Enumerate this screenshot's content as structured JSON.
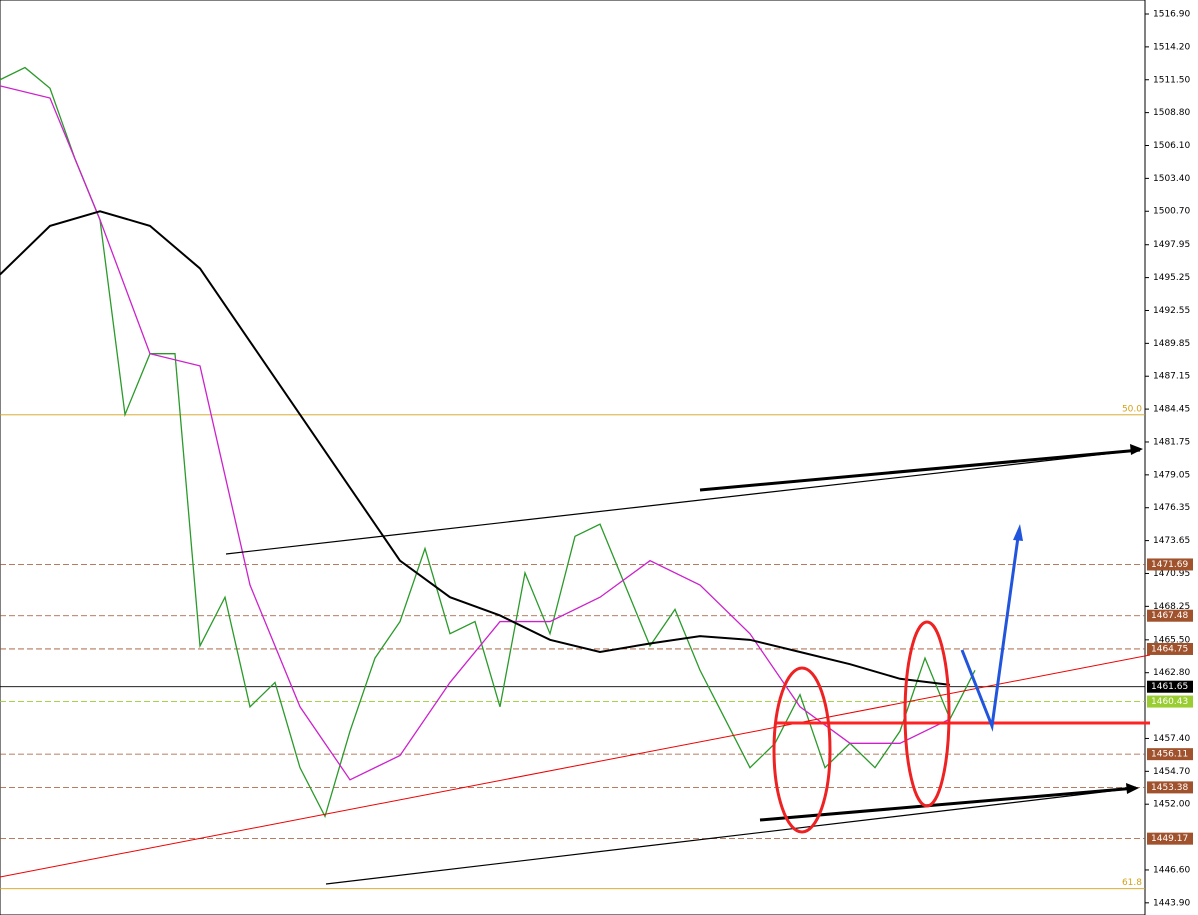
{
  "chart_data": {
    "type": "line",
    "ylim": [
      1442.9,
      1518.05
    ],
    "yticks": [
      {
        "value": 1516.9,
        "label": "1516.90"
      },
      {
        "value": 1514.2,
        "label": "1514.20"
      },
      {
        "value": 1511.5,
        "label": "1511.50"
      },
      {
        "value": 1508.8,
        "label": "1508.80"
      },
      {
        "value": 1506.1,
        "label": "1506.10"
      },
      {
        "value": 1503.4,
        "label": "1503.40"
      },
      {
        "value": 1500.7,
        "label": "1500.70"
      },
      1497.95,
      1495.25,
      1492.55,
      1489.85,
      1487.15,
      1484.45,
      1481.75,
      1479.05,
      1476.35,
      1473.65,
      1470.95,
      1468.25,
      {
        "value": 1465.5,
        "label": "1465.50"
      },
      {
        "value": 1462.8,
        "label": "1462.80"
      },
      {
        "value": 1457.4,
        "label": "1457.40"
      },
      {
        "value": 1454.7,
        "label": "1454.70"
      },
      {
        "value": 1452,
        "label": "1452.00"
      },
      {
        "value": 1446.6,
        "label": "1446.60"
      },
      {
        "value": 1443.9,
        "label": "1443.90"
      }
    ],
    "series": [
      {
        "color": "#2a9a2a",
        "values": [
          1511.5,
          1512.5,
          1510.8,
          1505,
          1500,
          1484,
          1489,
          1489,
          1465,
          1469,
          1460,
          1462,
          1455,
          1451,
          1458,
          1464,
          1467,
          1473,
          1466,
          1467,
          1460,
          1471,
          1466,
          1474,
          1475,
          1470,
          1465,
          1468,
          1463,
          1459,
          1455,
          1457,
          1461,
          1455,
          1457,
          1455,
          1458,
          1464,
          1459,
          1463
        ]
      },
      {
        "color": "#cc22cc",
        "values": [
          1511,
          1510,
          1500,
          1489,
          1488,
          1470,
          1460,
          1454,
          1456,
          1462,
          1467,
          1467,
          1469,
          1472,
          1470,
          1466,
          1460,
          1457,
          1457,
          1459
        ]
      },
      {
        "color": "#000000",
        "values": [
          1495.5,
          1499.5,
          1500.7,
          1499.5,
          1496,
          1490,
          1484,
          1478,
          1472,
          1469,
          1467.5,
          1465.5,
          1464.5,
          1465.2,
          1465.8,
          1465.5,
          1464.5,
          1463.5,
          1462.3,
          1461.8
        ]
      }
    ],
    "levels": [
      {
        "value": 1471.69,
        "color": "#a0522d"
      },
      {
        "value": 1467.48,
        "color": "#a0522d"
      },
      {
        "value": 1464.75,
        "color": "#a0522d"
      },
      {
        "value": 1461.65,
        "color": "#000000"
      },
      {
        "value": 1460.43,
        "color": "#9acd32"
      },
      {
        "value": 1456.11,
        "color": "#a0522d"
      },
      {
        "value": 1453.38,
        "color": "#a0522d"
      },
      {
        "value": 1449.17,
        "color": "#a0522d"
      }
    ],
    "fib": [
      {
        "value": 1483.98,
        "label": "50.0"
      },
      {
        "value": 1445.06,
        "label": "61.8"
      }
    ]
  }
}
